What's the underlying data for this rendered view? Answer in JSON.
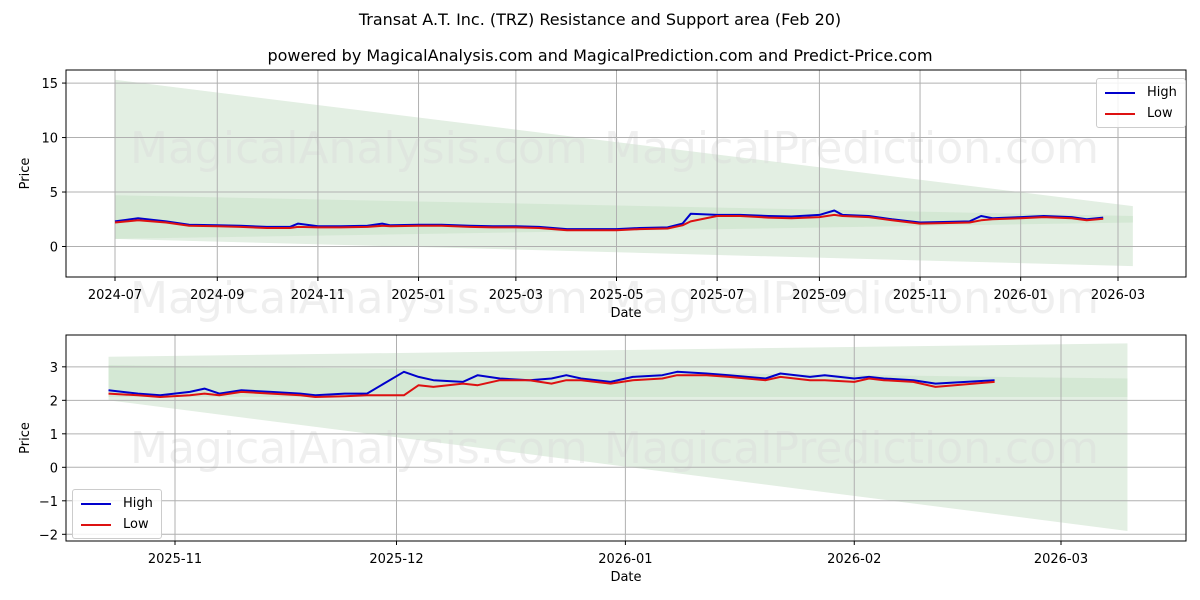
{
  "header": {
    "title": "Transat A.T. Inc. (TRZ) Resistance and Support area (Feb 20)",
    "subtitle": "powered by MagicalAnalysis.com and MagicalPrediction.com and Predict-Price.com"
  },
  "watermarks": [
    "MagicalAnalysis.com",
    "MagicalPrediction.com"
  ],
  "colors": {
    "high": "#0000cc",
    "low": "#dd1111",
    "band_light": "#e3efe3",
    "band_mid": "#cfe5cf",
    "grid": "#b0b0b0"
  },
  "chart_data": [
    {
      "type": "line",
      "title": "Full history",
      "xlabel": "Date",
      "ylabel": "Price",
      "ylim": [
        -2.8,
        16.2
      ],
      "yticks": [
        0,
        5,
        10,
        15
      ],
      "xticks": [
        "2024-07",
        "2024-09",
        "2024-11",
        "2025-01",
        "2025-03",
        "2025-05",
        "2025-07",
        "2025-09",
        "2025-11",
        "2026-01",
        "2026-03"
      ],
      "grid": true,
      "legend_position": "upper right",
      "legend": [
        "High",
        "Low"
      ],
      "x": [
        "2024-07-01",
        "2024-07-15",
        "2024-08-01",
        "2024-08-15",
        "2024-09-01",
        "2024-09-15",
        "2024-10-01",
        "2024-10-15",
        "2024-10-20",
        "2024-11-01",
        "2024-11-15",
        "2024-12-01",
        "2024-12-10",
        "2024-12-15",
        "2025-01-01",
        "2025-01-15",
        "2025-02-01",
        "2025-02-15",
        "2025-03-01",
        "2025-03-15",
        "2025-04-01",
        "2025-04-15",
        "2025-05-01",
        "2025-05-15",
        "2025-06-01",
        "2025-06-10",
        "2025-06-15",
        "2025-07-01",
        "2025-07-15",
        "2025-08-01",
        "2025-08-15",
        "2025-09-01",
        "2025-09-10",
        "2025-09-15",
        "2025-10-01",
        "2025-10-15",
        "2025-11-01",
        "2025-11-15",
        "2025-12-01",
        "2025-12-08",
        "2025-12-15",
        "2026-01-01",
        "2026-01-15",
        "2026-02-01",
        "2026-02-10",
        "2026-02-20"
      ],
      "series": [
        {
          "name": "High",
          "values": [
            2.3,
            2.6,
            2.3,
            2.0,
            1.95,
            1.9,
            1.8,
            1.8,
            2.1,
            1.85,
            1.85,
            1.9,
            2.1,
            1.95,
            2.0,
            2.0,
            1.9,
            1.85,
            1.85,
            1.8,
            1.6,
            1.6,
            1.6,
            1.7,
            1.75,
            2.1,
            3.0,
            2.9,
            2.9,
            2.8,
            2.75,
            2.9,
            3.3,
            2.9,
            2.8,
            2.5,
            2.2,
            2.25,
            2.3,
            2.8,
            2.6,
            2.7,
            2.8,
            2.7,
            2.5,
            2.65
          ]
        },
        {
          "name": "Low",
          "values": [
            2.2,
            2.4,
            2.2,
            1.9,
            1.85,
            1.8,
            1.7,
            1.7,
            1.8,
            1.75,
            1.75,
            1.8,
            1.9,
            1.85,
            1.9,
            1.9,
            1.8,
            1.75,
            1.75,
            1.7,
            1.5,
            1.5,
            1.5,
            1.6,
            1.65,
            1.95,
            2.3,
            2.8,
            2.8,
            2.65,
            2.6,
            2.7,
            2.9,
            2.8,
            2.7,
            2.4,
            2.1,
            2.15,
            2.2,
            2.4,
            2.5,
            2.6,
            2.7,
            2.6,
            2.4,
            2.55
          ]
        }
      ],
      "bands": [
        {
          "name": "outer",
          "start": "2024-07-01",
          "end": "2026-03-10",
          "upper_start": 15.3,
          "upper_end": 3.7,
          "lower_start": 0.7,
          "lower_end": -1.8
        },
        {
          "name": "inner",
          "start": "2024-07-01",
          "end": "2026-03-10",
          "upper_start": 4.7,
          "upper_end": 2.8,
          "lower_start": 0.7,
          "lower_end": 2.2
        }
      ]
    },
    {
      "type": "line",
      "title": "Recent zoom",
      "xlabel": "Date",
      "ylabel": "Price",
      "ylim": [
        -2.2,
        3.95
      ],
      "yticks": [
        -2,
        -1,
        0,
        1,
        2,
        3
      ],
      "xticks": [
        "2025-11",
        "2025-12",
        "2026-01",
        "2026-02",
        "2026-03"
      ],
      "grid": true,
      "legend_position": "lower left",
      "legend": [
        "High",
        "Low"
      ],
      "x": [
        "2025-10-23",
        "2025-10-27",
        "2025-10-30",
        "2025-11-03",
        "2025-11-05",
        "2025-11-07",
        "2025-11-10",
        "2025-11-14",
        "2025-11-18",
        "2025-11-20",
        "2025-11-24",
        "2025-11-27",
        "2025-12-02",
        "2025-12-04",
        "2025-12-06",
        "2025-12-10",
        "2025-12-12",
        "2025-12-15",
        "2025-12-19",
        "2025-12-22",
        "2025-12-24",
        "2025-12-26",
        "2025-12-30",
        "2026-01-02",
        "2026-01-06",
        "2026-01-08",
        "2026-01-12",
        "2026-01-15",
        "2026-01-20",
        "2026-01-22",
        "2026-01-26",
        "2026-01-28",
        "2026-02-01",
        "2026-02-03",
        "2026-02-05",
        "2026-02-09",
        "2026-02-12",
        "2026-02-20"
      ],
      "series": [
        {
          "name": "High",
          "values": [
            2.3,
            2.2,
            2.15,
            2.25,
            2.35,
            2.2,
            2.3,
            2.25,
            2.2,
            2.15,
            2.2,
            2.2,
            2.85,
            2.7,
            2.6,
            2.55,
            2.75,
            2.65,
            2.6,
            2.65,
            2.75,
            2.65,
            2.55,
            2.7,
            2.75,
            2.85,
            2.8,
            2.75,
            2.65,
            2.8,
            2.7,
            2.75,
            2.65,
            2.7,
            2.65,
            2.6,
            2.5,
            2.6
          ]
        },
        {
          "name": "Low",
          "values": [
            2.2,
            2.15,
            2.1,
            2.15,
            2.2,
            2.15,
            2.25,
            2.2,
            2.15,
            2.1,
            2.12,
            2.15,
            2.15,
            2.45,
            2.4,
            2.5,
            2.45,
            2.6,
            2.6,
            2.5,
            2.6,
            2.6,
            2.5,
            2.6,
            2.65,
            2.75,
            2.75,
            2.7,
            2.6,
            2.7,
            2.6,
            2.6,
            2.55,
            2.65,
            2.6,
            2.55,
            2.4,
            2.55
          ]
        }
      ],
      "bands": [
        {
          "name": "outer",
          "start": "2025-10-23",
          "end": "2026-03-10",
          "upper_start": 3.3,
          "upper_end": 3.7,
          "lower_start": 2.0,
          "lower_end": -1.9
        },
        {
          "name": "inner",
          "start": "2025-10-23",
          "end": "2026-03-10",
          "upper_start": 3.05,
          "upper_end": 2.65,
          "lower_start": 2.1,
          "lower_end": 2.1
        }
      ]
    }
  ]
}
